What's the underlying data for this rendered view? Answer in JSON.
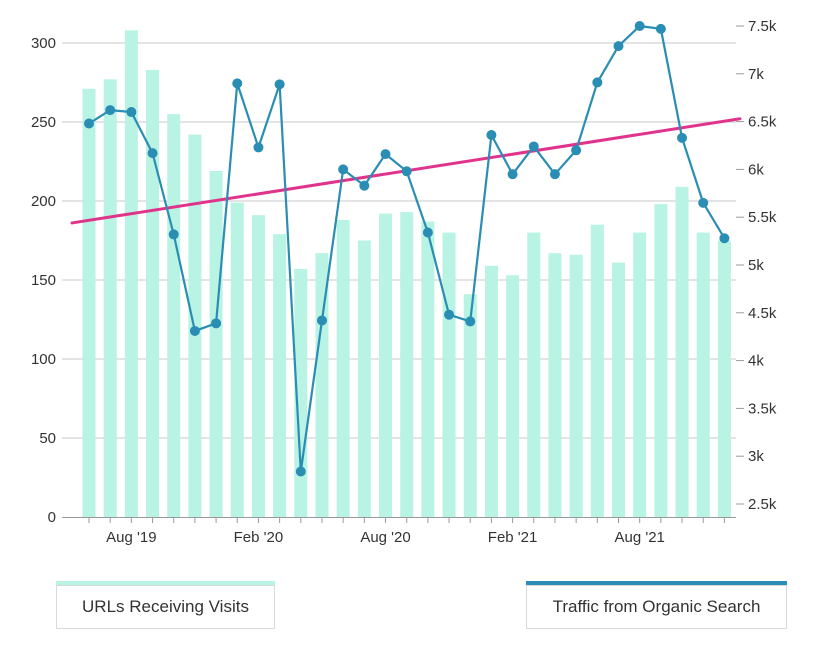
{
  "chart_data": {
    "type": "bar+line",
    "x_labels": [
      "Aug '19",
      "Feb '20",
      "Aug '20",
      "Feb '21",
      "Aug '21"
    ],
    "x_label_month_index": [
      2,
      8,
      14,
      20,
      26
    ],
    "series": [
      {
        "name": "URLs Receiving Visits",
        "type": "bar",
        "axis": "left",
        "values": [
          271,
          277,
          308,
          283,
          255,
          242,
          219,
          199,
          191,
          179,
          157,
          167,
          188,
          175,
          192,
          193,
          187,
          180,
          141,
          159,
          153,
          180,
          167,
          166,
          185,
          161,
          180,
          198,
          209,
          180,
          175
        ]
      },
      {
        "name": "Traffic from Organic Search",
        "type": "line",
        "axis": "right",
        "values": [
          6480,
          6620,
          6600,
          6170,
          5320,
          4310,
          4390,
          6900,
          6230,
          6890,
          2840,
          4420,
          6000,
          5830,
          6160,
          5980,
          5340,
          4480,
          4410,
          6360,
          5950,
          6240,
          5950,
          6200,
          6910,
          7290,
          7500,
          7470,
          6330,
          5650,
          5280
        ]
      }
    ],
    "trendline": {
      "axis": "right",
      "start": 5440,
      "end": 6530
    },
    "y_left": {
      "min": 0,
      "max": 300,
      "ticks": [
        0,
        50,
        100,
        150,
        200,
        250,
        300
      ]
    },
    "y_right": {
      "min": 2500,
      "max": 7500,
      "ticks": [
        2500,
        3000,
        3500,
        4000,
        4500,
        5000,
        5500,
        6000,
        6500,
        7000,
        7500
      ],
      "tick_labels": [
        "2.5k",
        "3k",
        "3.5k",
        "4k",
        "4.5k",
        "5k",
        "5.5k",
        "6k",
        "6.5k",
        "7k",
        "7.5k"
      ]
    },
    "grid": true,
    "legend_position": "bottom",
    "colors": {
      "bars": "#b8f3e3",
      "line": "#2a8db4",
      "trend": "#e0348c",
      "grid": "#c8c8c8",
      "axis": "#999999"
    }
  },
  "legend": {
    "urls_label": "URLs Receiving Visits",
    "traffic_label": "Traffic from Organic Search"
  }
}
